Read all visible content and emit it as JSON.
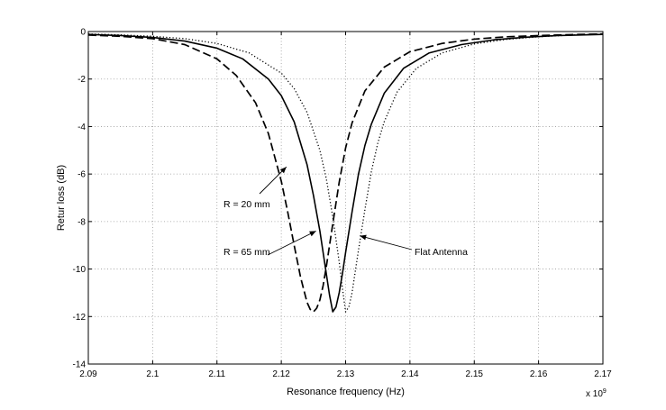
{
  "chart_data": {
    "type": "line",
    "xlabel": "Resonance frequency (Hz)",
    "ylabel": "Retur loss (dB)",
    "x_multiplier": "x 10",
    "x_multiplier_exp": "9",
    "xlim": [
      2.09,
      2.17
    ],
    "ylim": [
      -14,
      0
    ],
    "xticks": [
      2.09,
      2.1,
      2.11,
      2.12,
      2.13,
      2.14,
      2.15,
      2.16,
      2.17
    ],
    "xtick_labels": [
      "2.09",
      "2.1",
      "2.11",
      "2.12",
      "2.13",
      "2.14",
      "2.15",
      "2.16",
      "2.17"
    ],
    "yticks": [
      0,
      -2,
      -4,
      -6,
      -8,
      -10,
      -12,
      -14
    ],
    "ytick_labels": [
      "0",
      "-2",
      "-4",
      "-6",
      "-8",
      "-10",
      "-12",
      "-14"
    ],
    "grid": true,
    "series": [
      {
        "name": "R = 20 mm",
        "style": "dashed",
        "x": [
          2.09,
          2.095,
          2.1,
          2.105,
          2.11,
          2.113,
          2.116,
          2.118,
          2.12,
          2.121,
          2.122,
          2.123,
          2.124,
          2.1245,
          2.125,
          2.1255,
          2.126,
          2.1265,
          2.127,
          2.128,
          2.129,
          2.13,
          2.131,
          2.133,
          2.136,
          2.14,
          2.145,
          2.15,
          2.155,
          2.16,
          2.165,
          2.17
        ],
        "y": [
          -0.15,
          -0.2,
          -0.3,
          -0.55,
          -1.15,
          -1.85,
          -3.0,
          -4.3,
          -6.3,
          -7.6,
          -9.0,
          -10.35,
          -11.4,
          -11.7,
          -11.8,
          -11.65,
          -11.3,
          -10.7,
          -9.9,
          -8.1,
          -6.35,
          -4.9,
          -3.85,
          -2.5,
          -1.5,
          -0.85,
          -0.5,
          -0.32,
          -0.22,
          -0.17,
          -0.13,
          -0.1
        ]
      },
      {
        "name": "R = 65 mm",
        "style": "solid",
        "x": [
          2.09,
          2.095,
          2.1,
          2.105,
          2.11,
          2.114,
          2.118,
          2.12,
          2.122,
          2.124,
          2.125,
          2.126,
          2.127,
          2.1275,
          2.128,
          2.1285,
          2.129,
          2.1295,
          2.13,
          2.131,
          2.132,
          2.133,
          2.134,
          2.136,
          2.139,
          2.143,
          2.148,
          2.153,
          2.158,
          2.163,
          2.17
        ],
        "y": [
          -0.12,
          -0.17,
          -0.25,
          -0.4,
          -0.7,
          -1.15,
          -2.0,
          -2.7,
          -3.8,
          -5.6,
          -6.9,
          -8.4,
          -10.2,
          -11.1,
          -11.8,
          -11.6,
          -11.0,
          -10.2,
          -9.3,
          -7.6,
          -6.0,
          -4.8,
          -3.9,
          -2.6,
          -1.55,
          -0.9,
          -0.55,
          -0.35,
          -0.24,
          -0.17,
          -0.12
        ]
      },
      {
        "name": "Flat Antenna",
        "style": "dotted",
        "x": [
          2.09,
          2.095,
          2.1,
          2.105,
          2.11,
          2.115,
          2.12,
          2.122,
          2.124,
          2.126,
          2.127,
          2.128,
          2.129,
          2.1295,
          2.13,
          2.1305,
          2.131,
          2.1315,
          2.132,
          2.133,
          2.134,
          2.135,
          2.136,
          2.138,
          2.141,
          2.145,
          2.15,
          2.155,
          2.16,
          2.165,
          2.17
        ],
        "y": [
          -0.1,
          -0.14,
          -0.2,
          -0.3,
          -0.5,
          -0.9,
          -1.75,
          -2.4,
          -3.4,
          -5.0,
          -6.2,
          -7.8,
          -9.7,
          -10.8,
          -11.8,
          -11.6,
          -11.0,
          -10.1,
          -9.2,
          -7.5,
          -5.9,
          -4.7,
          -3.8,
          -2.55,
          -1.55,
          -0.9,
          -0.52,
          -0.33,
          -0.22,
          -0.15,
          -0.1
        ]
      }
    ],
    "annotations": [
      {
        "text": "R = 20 mm",
        "target_series": "R = 20 mm",
        "x": 2.1208,
        "y": -5.7
      },
      {
        "text": "R = 65 mm",
        "target_series": "R = 65 mm",
        "x": 2.1254,
        "y": -8.4
      },
      {
        "text": "Flat Antenna",
        "target_series": "Flat Antenna",
        "x": 2.1322,
        "y": -8.6
      }
    ]
  }
}
